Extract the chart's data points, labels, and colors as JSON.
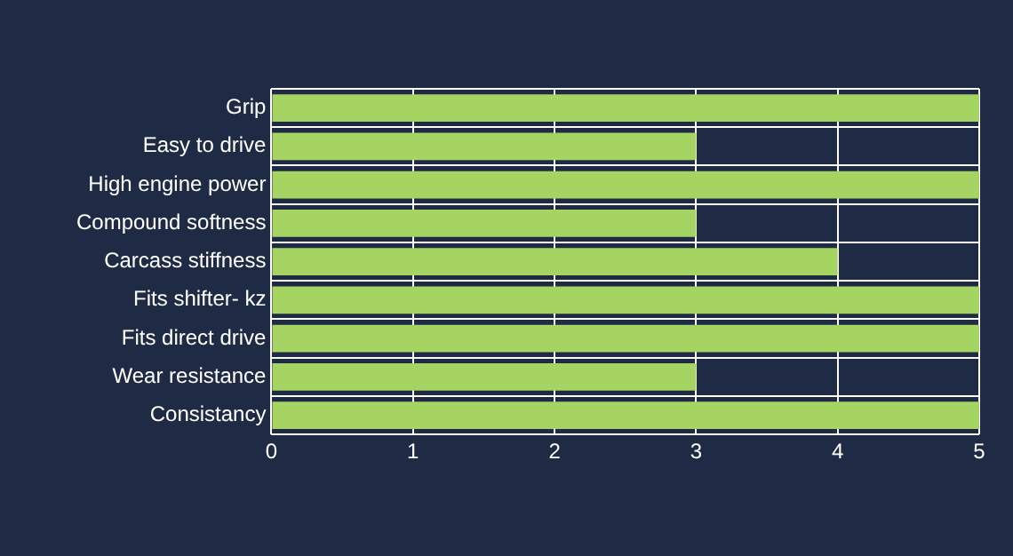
{
  "chart_data": {
    "type": "bar",
    "orientation": "horizontal",
    "categories": [
      "Grip",
      "Easy to drive",
      "High engine power",
      "Compound softness",
      "Carcass stiffness",
      "Fits shifter- kz",
      "Fits direct drive",
      "Wear resistance",
      "Consistancy"
    ],
    "values": [
      5,
      3,
      5,
      3,
      4,
      5,
      5,
      3,
      5
    ],
    "color": "#a5d462",
    "xlim": [
      0,
      5
    ],
    "xticks": [
      0,
      1,
      2,
      3,
      4,
      5
    ],
    "grid": true,
    "legend": false
  }
}
